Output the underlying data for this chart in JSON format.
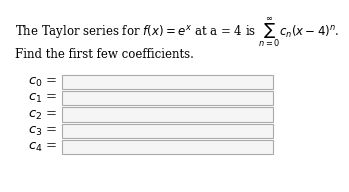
{
  "title_text": "The Taylor series for $f(x) = e^x$ at a = 4 is $\\sum_{n=0}^{\\infty} c_n(x-4)^n$.",
  "subtitle_text": "Find the first few coefficients.",
  "labels": [
    "$c_0$",
    "$c_1$",
    "$c_2$",
    "$c_3$",
    "$c_4$"
  ],
  "background_color": "#ffffff",
  "box_color": "#f5f5f5",
  "box_edge_color": "#aaaaaa",
  "title_fontsize": 8.5,
  "subtitle_fontsize": 8.5,
  "label_fontsize": 9.5
}
